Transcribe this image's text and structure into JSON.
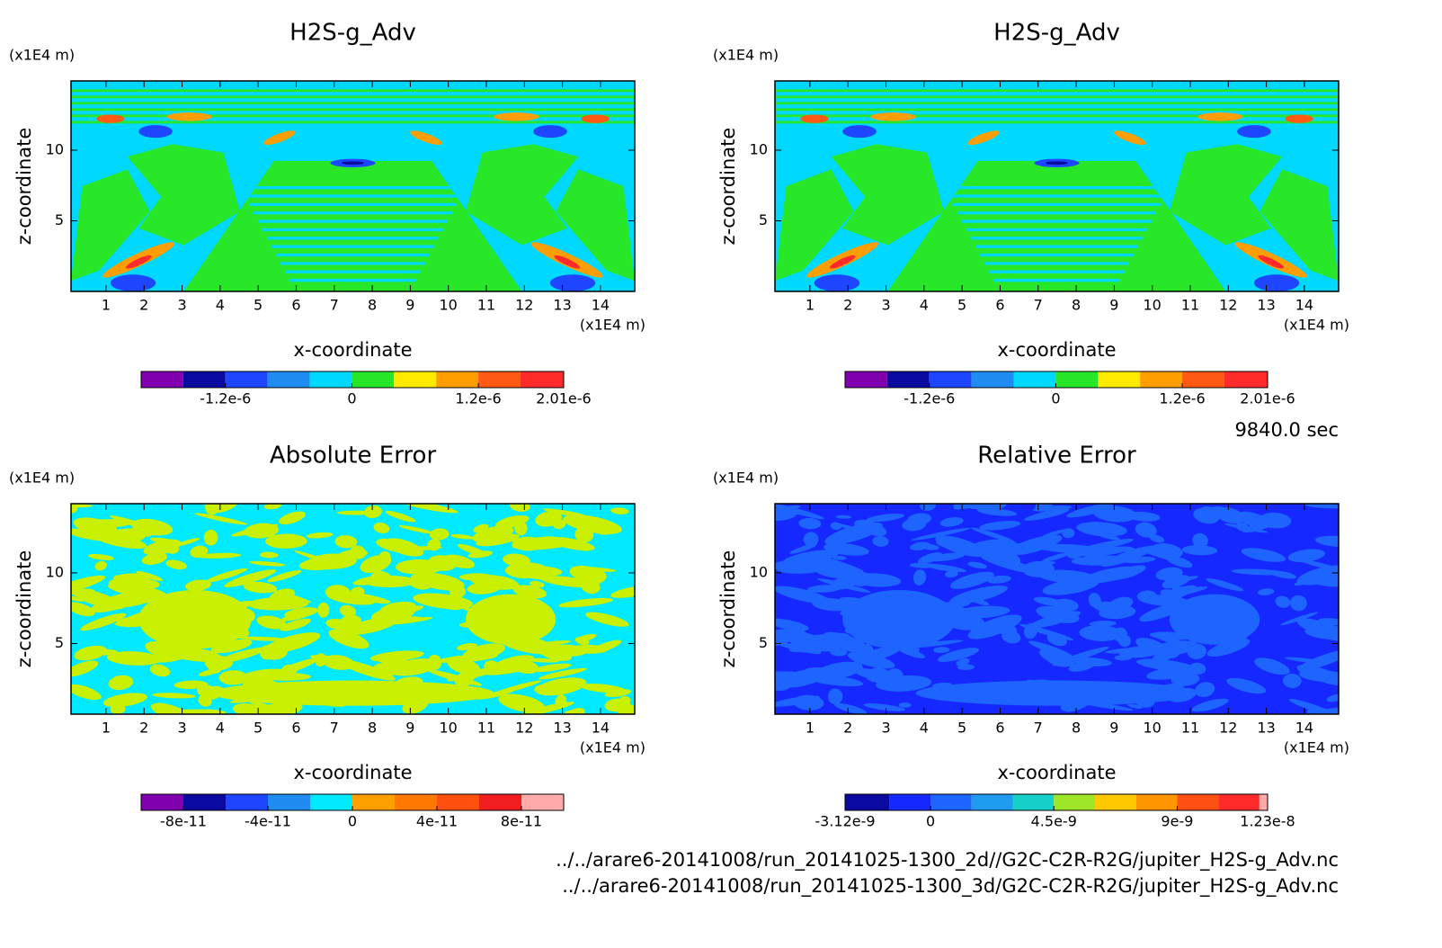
{
  "annotations": {
    "time": "9840.0 sec",
    "files": [
      "../../arare6-20141008/run_20141025-1300_2d//G2C-C2R-R2G/jupiter_H2S-g_Adv.nc",
      "../../arare6-20141008/run_20141025-1300_3d/G2C-C2R-R2G/jupiter_H2S-g_Adv.nc"
    ]
  },
  "chart_data": [
    {
      "type": "contour",
      "title": "H2S-g_Adv",
      "xlabel": "x-coordinate",
      "ylabel": "z-coordinate",
      "x_unit": "(x1E4 m)",
      "y_unit": "(x1E4 m)",
      "xlim": [
        0.08,
        14.9
      ],
      "ylim": [
        0,
        14.9
      ],
      "xticks": [
        1,
        2,
        3,
        4,
        5,
        6,
        7,
        8,
        9,
        10,
        11,
        12,
        13,
        14
      ],
      "yticks": [
        5,
        10
      ],
      "colorbar": {
        "levels": [
          -2e-06,
          -1.6e-06,
          -1.2e-06,
          -8e-07,
          -4e-07,
          0,
          4e-07,
          8e-07,
          1.2e-06,
          1.6e-06,
          2.01e-06
        ],
        "colors": [
          "#8000b0",
          "#0a0aa0",
          "#1e46ff",
          "#1e8cf0",
          "#00d8ff",
          "#28e628",
          "#ffeb00",
          "#ff9e00",
          "#ff5a14",
          "#ff2a2a"
        ],
        "ticks": [
          {
            "value": -1.2e-06,
            "label": "-1.2e-6"
          },
          0,
          {
            "value": 1.2e-06,
            "label": "1.2e-6"
          },
          {
            "value": 2.01e-06,
            "label": "2.01e-6"
          }
        ]
      }
    },
    {
      "type": "contour",
      "title": "H2S-g_Adv",
      "xlabel": "x-coordinate",
      "ylabel": "z-coordinate",
      "x_unit": "(x1E4 m)",
      "y_unit": "(x1E4 m)",
      "xlim": [
        0.08,
        14.9
      ],
      "ylim": [
        0,
        14.9
      ],
      "xticks": [
        1,
        2,
        3,
        4,
        5,
        6,
        7,
        8,
        9,
        10,
        11,
        12,
        13,
        14
      ],
      "yticks": [
        5,
        10
      ],
      "colorbar": {
        "levels": [
          -2e-06,
          -1.6e-06,
          -1.2e-06,
          -8e-07,
          -4e-07,
          0,
          4e-07,
          8e-07,
          1.2e-06,
          1.6e-06,
          2.01e-06
        ],
        "colors": [
          "#8000b0",
          "#0a0aa0",
          "#1e46ff",
          "#1e8cf0",
          "#00d8ff",
          "#28e628",
          "#ffeb00",
          "#ff9e00",
          "#ff5a14",
          "#ff2a2a"
        ],
        "ticks": [
          {
            "value": -1.2e-06,
            "label": "-1.2e-6"
          },
          0,
          {
            "value": 1.2e-06,
            "label": "1.2e-6"
          },
          {
            "value": 2.01e-06,
            "label": "2.01e-6"
          }
        ]
      }
    },
    {
      "type": "contour",
      "title": "Absolute Error",
      "xlabel": "x-coordinate",
      "ylabel": "z-coordinate",
      "x_unit": "(x1E4 m)",
      "y_unit": "(x1E4 m)",
      "xlim": [
        0.08,
        14.9
      ],
      "ylim": [
        0,
        14.9
      ],
      "xticks": [
        1,
        2,
        3,
        4,
        5,
        6,
        7,
        8,
        9,
        10,
        11,
        12,
        13,
        14
      ],
      "yticks": [
        5,
        10
      ],
      "colorbar": {
        "levels": [
          -1e-10,
          -8e-11,
          -6e-11,
          -4e-11,
          -2e-11,
          0,
          2e-11,
          4e-11,
          6e-11,
          8e-11,
          1e-10
        ],
        "colors": [
          "#8000b0",
          "#0a0aa0",
          "#1e46ff",
          "#1e8cf0",
          "#00eaff",
          "#ffa000",
          "#ff7800",
          "#ff5010",
          "#f01e1e",
          "#ffaaaa"
        ],
        "ticks": [
          {
            "value": -8e-11,
            "label": "-8e-11"
          },
          {
            "value": -4e-11,
            "label": "-4e-11"
          },
          0,
          {
            "value": 4e-11,
            "label": "4e-11"
          },
          {
            "value": 8e-11,
            "label": "8e-11"
          }
        ]
      }
    },
    {
      "type": "contour",
      "title": "Relative Error",
      "xlabel": "x-coordinate",
      "ylabel": "z-coordinate",
      "x_unit": "(x1E4 m)",
      "y_unit": "(x1E4 m)",
      "xlim": [
        0.08,
        14.9
      ],
      "ylim": [
        0,
        14.9
      ],
      "xticks": [
        1,
        2,
        3,
        4,
        5,
        6,
        7,
        8,
        9,
        10,
        11,
        12,
        13,
        14
      ],
      "yticks": [
        5,
        10
      ],
      "colorbar": {
        "levels": [
          -3.12e-09,
          -1.5e-09,
          0,
          1.5e-09,
          3e-09,
          4.5e-09,
          6e-09,
          7.5e-09,
          9e-09,
          1.05e-08,
          1.2e-08,
          1.23e-08
        ],
        "colors": [
          "#0a0aa0",
          "#1428ff",
          "#1e64ff",
          "#1e9cf0",
          "#14d2c8",
          "#a0e628",
          "#ffc800",
          "#ff9600",
          "#ff5014",
          "#ff2a2a",
          "#ffaaaa"
        ],
        "ticks": [
          {
            "value": -3.12e-09,
            "label": "-3.12e-9"
          },
          0,
          {
            "value": 4.5e-09,
            "label": "4.5e-9"
          },
          {
            "value": 9e-09,
            "label": "9e-9"
          },
          {
            "value": 1.23e-08,
            "label": "1.23e-8"
          }
        ]
      }
    }
  ]
}
